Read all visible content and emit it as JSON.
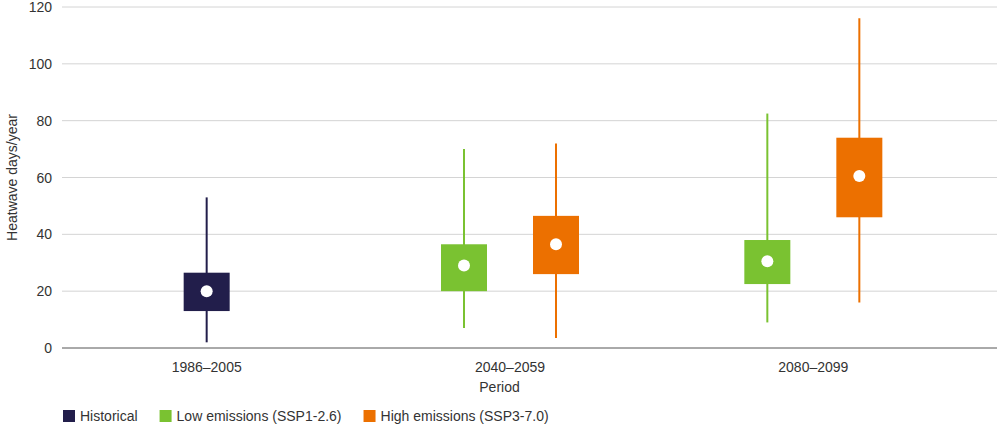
{
  "chart_data": {
    "type": "box",
    "x_label": "Period",
    "y_label": "Heatwave days/year",
    "categories": [
      "1986–2005",
      "2040–2059",
      "2080–2099"
    ],
    "ylim": [
      0,
      120
    ],
    "yticks": [
      0,
      20,
      40,
      60,
      80,
      100,
      120
    ],
    "grid": true,
    "legend": "bottom",
    "series": [
      {
        "name": "Historical",
        "color": "#221e4b",
        "values": [
          20,
          null,
          null
        ],
        "q1": [
          13,
          null,
          null
        ],
        "q3": [
          26.5,
          null,
          null
        ],
        "min": [
          2,
          null,
          null
        ],
        "max": [
          53,
          null,
          null
        ]
      },
      {
        "name": "Low emissions (SSP1-2.6)",
        "color": "#7ac231",
        "values": [
          null,
          29,
          30.5
        ],
        "q1": [
          null,
          20,
          22.5
        ],
        "q3": [
          null,
          36.5,
          38
        ],
        "min": [
          null,
          7,
          9
        ],
        "max": [
          null,
          70,
          82.5
        ]
      },
      {
        "name": "High emissions (SSP3-7.0)",
        "color": "#ec7000",
        "values": [
          null,
          36.5,
          60.5
        ],
        "q1": [
          null,
          26,
          46
        ],
        "q3": [
          null,
          46.5,
          74
        ],
        "min": [
          null,
          3.5,
          16
        ],
        "max": [
          null,
          72,
          116
        ]
      }
    ]
  }
}
